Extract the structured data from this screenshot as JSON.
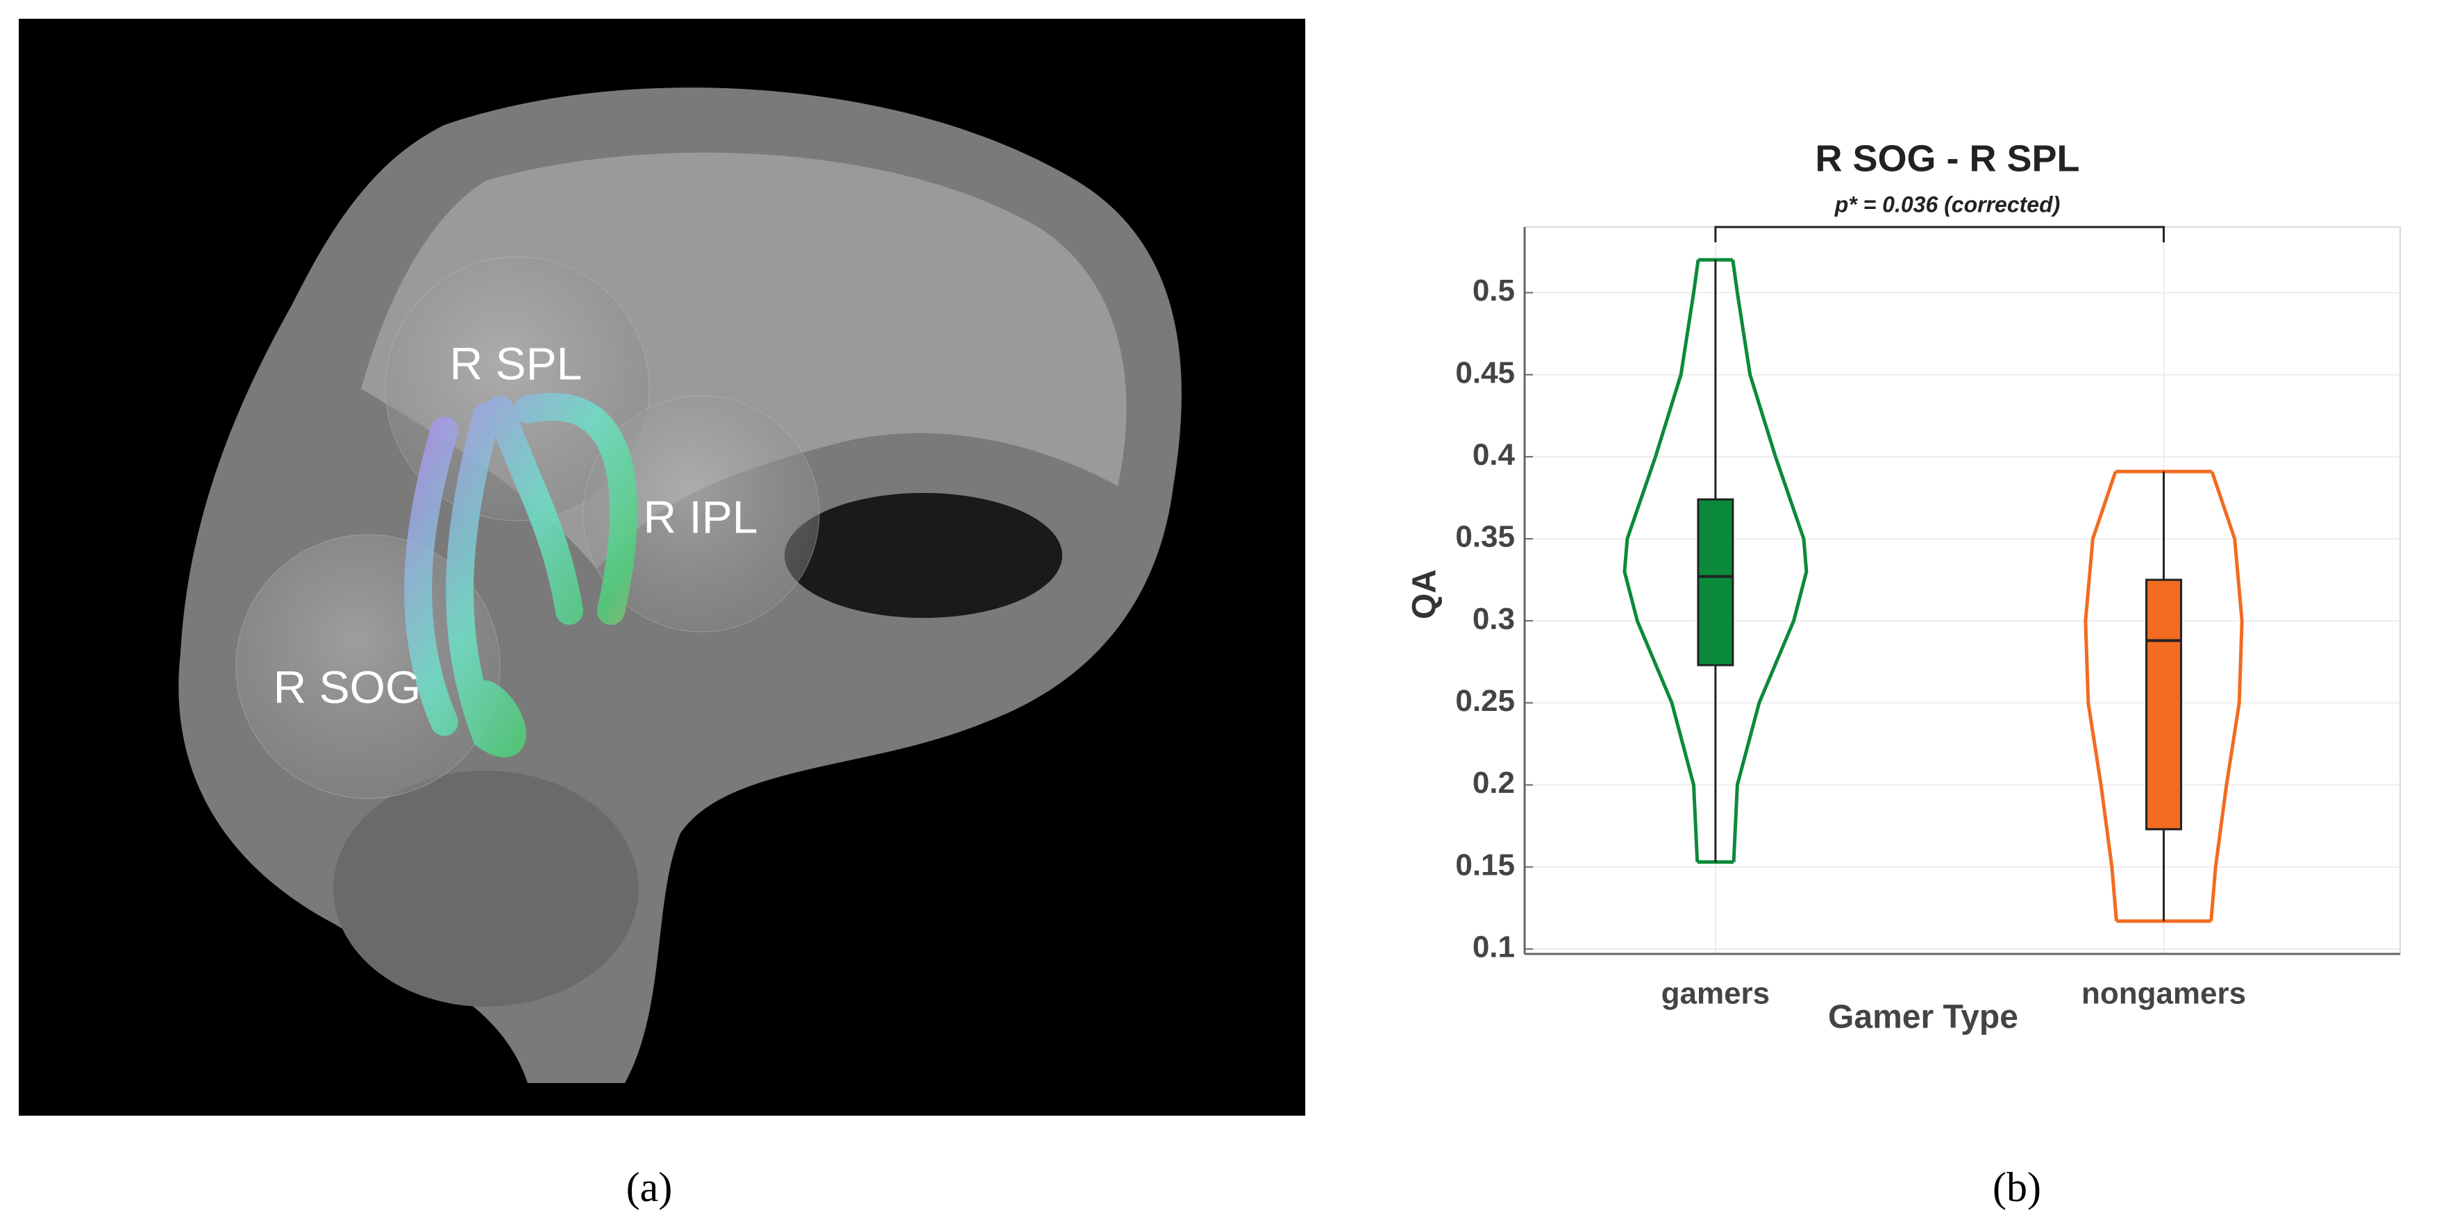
{
  "image": {
    "labels": [
      "R SPL",
      "R IPL",
      "R SOG"
    ],
    "caption": "(a)"
  },
  "chart_data": {
    "type": "violin",
    "title": "R SOG  -  R SPL",
    "annotation": "p* = 0.036 (corrected)",
    "ylabel": "QA",
    "xlabel": "Gamer Type",
    "categories": [
      "gamers",
      "nongamers"
    ],
    "ylim": [
      0.097,
      0.54
    ],
    "yticks": [
      0.1,
      0.15,
      0.2,
      0.25,
      0.3,
      0.35,
      0.4,
      0.45,
      0.5
    ],
    "grid": true,
    "series": [
      {
        "name": "gamers",
        "color": "#0b8a3a",
        "stats": {
          "min": 0.153,
          "q1": 0.273,
          "median": 0.327,
          "q3": 0.374,
          "max": 0.52
        },
        "density": {
          "y": [
            0.52,
            0.5,
            0.45,
            0.4,
            0.35,
            0.33,
            0.3,
            0.25,
            0.2,
            0.153
          ],
          "width": [
            0.19,
            0.24,
            0.38,
            0.66,
            0.97,
            1,
            0.86,
            0.48,
            0.24,
            0.2
          ]
        }
      },
      {
        "name": "nongamers",
        "color": "#f26b21",
        "stats": {
          "min": 0.117,
          "q1": 0.173,
          "median": 0.288,
          "q3": 0.325,
          "max": 0.391
        },
        "density": {
          "y": [
            0.391,
            0.35,
            0.3,
            0.25,
            0.2,
            0.15,
            0.117
          ],
          "width": [
            0.53,
            0.78,
            0.86,
            0.83,
            0.69,
            0.57,
            0.52
          ]
        }
      }
    ],
    "caption": "(b)"
  }
}
